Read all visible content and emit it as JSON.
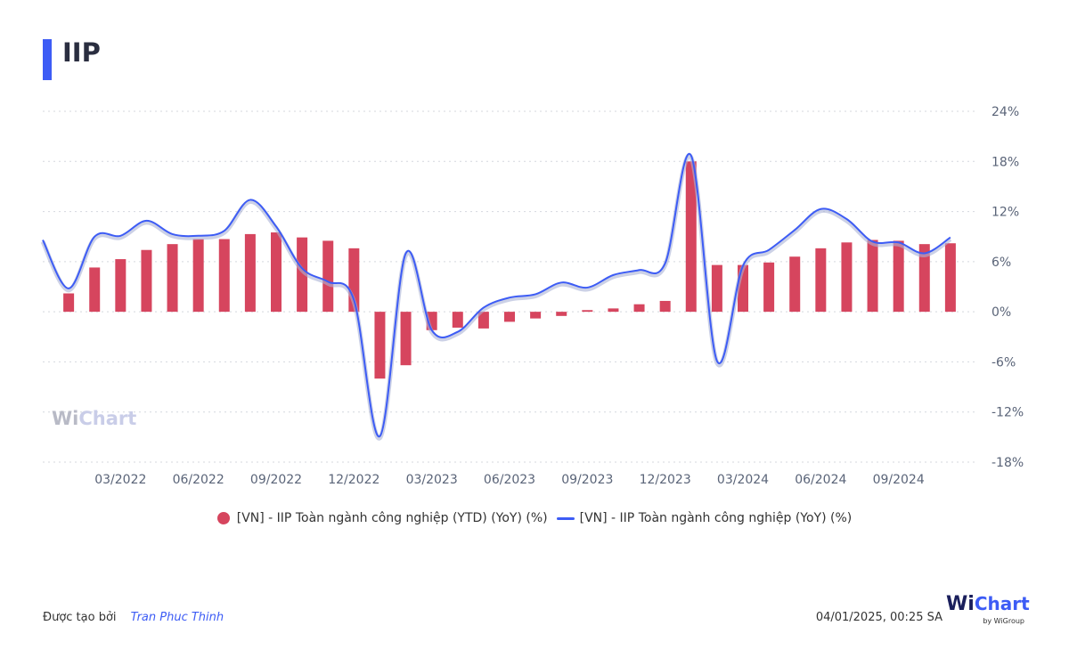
{
  "header": {
    "title": "IIP"
  },
  "colors": {
    "accent": "#3d5cf5",
    "bar": "#d6455e",
    "line": "#3d5cf5"
  },
  "chart_data": {
    "type": "bar+line",
    "ylim": [
      -18,
      24
    ],
    "yticks": [
      24,
      18,
      12,
      6,
      0,
      -6,
      -12,
      -18
    ],
    "ytick_labels": [
      "24%",
      "18%",
      "12%",
      "6%",
      "0%",
      "-6%",
      "-12%",
      "-18%"
    ],
    "x_tick_labels": [
      "03/2022",
      "06/2022",
      "09/2022",
      "12/2022",
      "03/2023",
      "06/2023",
      "09/2023",
      "12/2023",
      "03/2024",
      "06/2024",
      "09/2024"
    ],
    "grid": true,
    "legend_position": "bottom",
    "categories": [
      "12/2021",
      "01/2022",
      "02/2022",
      "03/2022",
      "04/2022",
      "05/2022",
      "06/2022",
      "07/2022",
      "08/2022",
      "09/2022",
      "10/2022",
      "11/2022",
      "12/2022",
      "01/2023",
      "02/2023",
      "03/2023",
      "04/2023",
      "05/2023",
      "06/2023",
      "07/2023",
      "08/2023",
      "09/2023",
      "10/2023",
      "11/2023",
      "12/2023",
      "01/2024",
      "02/2024",
      "03/2024",
      "04/2024",
      "05/2024",
      "06/2024",
      "07/2024",
      "08/2024",
      "09/2024",
      "10/2024",
      "11/2024",
      "12/2024"
    ],
    "series": [
      {
        "name": "[VN] - IIP Toàn ngành công nghiệp (YTD) (YoY) (%)",
        "type": "bar",
        "values": [
          null,
          2.2,
          5.3,
          6.3,
          7.4,
          8.1,
          8.7,
          8.7,
          9.3,
          9.5,
          8.9,
          8.5,
          7.6,
          -8.0,
          -6.4,
          -2.2,
          -1.9,
          -2.0,
          -1.2,
          -0.8,
          -0.5,
          0.2,
          0.4,
          0.9,
          1.3,
          18.0,
          5.6,
          5.6,
          5.9,
          6.6,
          7.6,
          8.3,
          8.6,
          8.5,
          8.1,
          8.2,
          null
        ]
      },
      {
        "name": "[VN] - IIP Toàn ngành công nghiệp (YoY) (%)",
        "type": "line",
        "values": [
          8.6,
          2.8,
          9.0,
          9.1,
          10.9,
          9.3,
          9.1,
          9.7,
          13.4,
          10.2,
          5.2,
          3.6,
          1.4,
          -14.9,
          7.0,
          -2.2,
          -2.4,
          0.5,
          1.7,
          2.1,
          3.5,
          2.9,
          4.4,
          5.0,
          5.8,
          18.7,
          -5.9,
          5.5,
          7.4,
          9.8,
          12.3,
          11.1,
          8.4,
          8.3,
          7.0,
          8.9,
          null
        ]
      }
    ]
  },
  "footer": {
    "created_by_label": "Được tạo bởi",
    "author": "Tran Phuc Thinh",
    "timestamp": "04/01/2025, 00:25 SA",
    "logo_wi": "Wi",
    "logo_chart": "Chart",
    "logo_by": "by WiGroup"
  },
  "watermark": {
    "w": "Wi",
    "chart": "Chart"
  }
}
